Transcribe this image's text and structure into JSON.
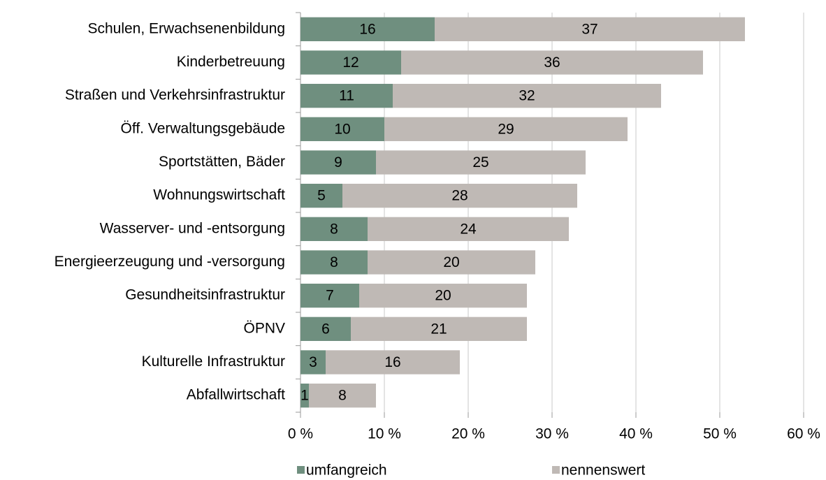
{
  "chart_data": {
    "type": "stacked_barh",
    "categories": [
      "Schulen, Erwachsenenbildung",
      "Kinderbetreuung",
      "Straßen und Verkehrsinfrastruktur",
      "Öff. Verwaltungsgebäude",
      "Sportstätten, Bäder",
      "Wohnungswirtschaft",
      "Wasserver- und -entsorgung",
      "Energieerzeugung und -versorgung",
      "Gesundheitsinfrastruktur",
      "ÖPNV",
      "Kulturelle Infrastruktur",
      "Abfallwirtschaft"
    ],
    "series": [
      {
        "name": "umfangreich",
        "color": "#6f8f7f",
        "values": [
          16,
          12,
          11,
          10,
          9,
          5,
          8,
          8,
          7,
          6,
          3,
          1
        ]
      },
      {
        "name": "nennenswert",
        "color": "#bfb9b5",
        "values": [
          37,
          36,
          32,
          29,
          25,
          28,
          24,
          20,
          20,
          21,
          16,
          8
        ]
      }
    ],
    "xlim": [
      0,
      60
    ],
    "xticks": [
      {
        "value": 0,
        "label": "0 %"
      },
      {
        "value": 10,
        "label": "10 %"
      },
      {
        "value": 20,
        "label": "20 %"
      },
      {
        "value": 30,
        "label": "30 %"
      },
      {
        "value": 40,
        "label": "40 %"
      },
      {
        "value": 50,
        "label": "50 %"
      },
      {
        "value": 60,
        "label": "60 %"
      }
    ],
    "grid": true,
    "legend": "bottom"
  }
}
